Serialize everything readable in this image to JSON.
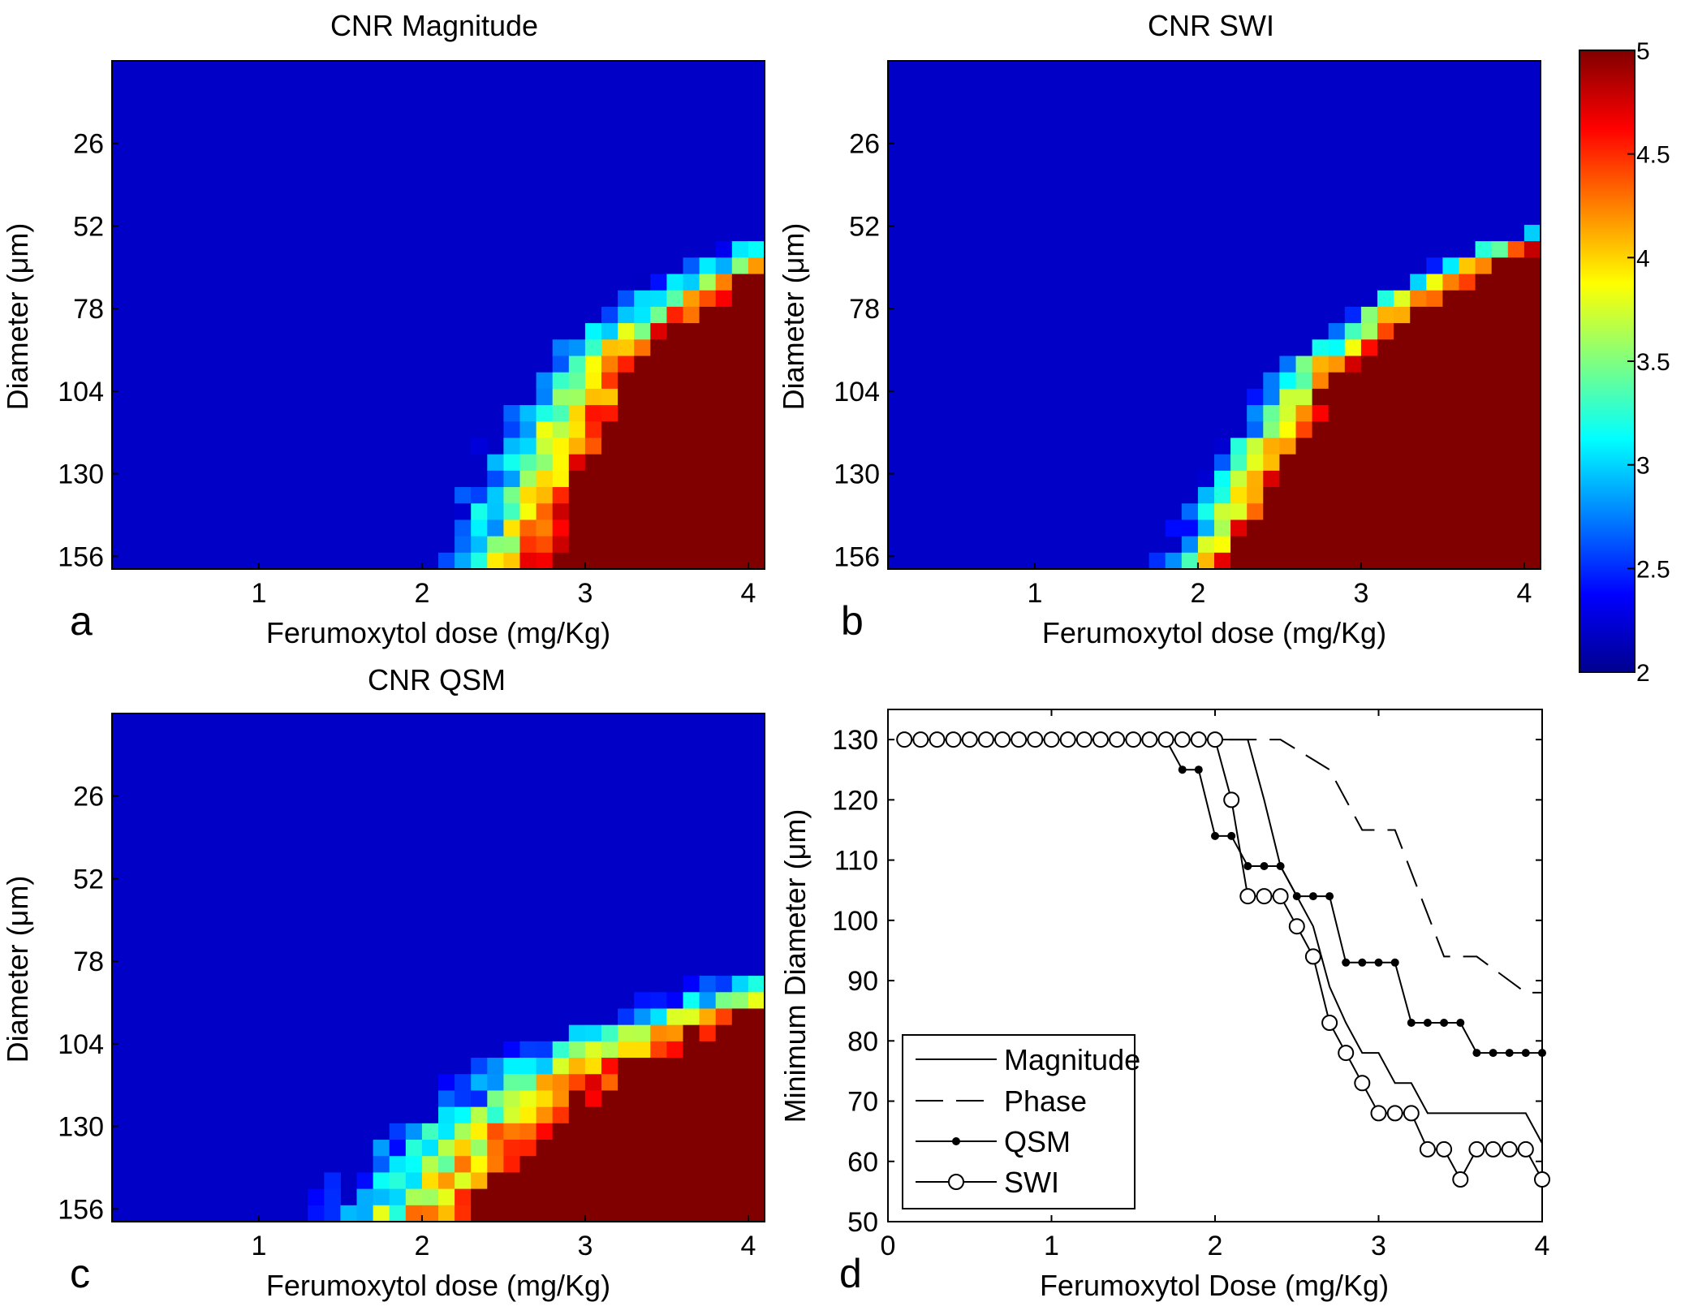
{
  "figure": {
    "panel_letters": [
      "a",
      "b",
      "c",
      "d"
    ]
  },
  "chart_data": [
    {
      "type": "heatmap",
      "panel": "a",
      "title": "CNR Magnitude",
      "xlabel": "Ferumoxytol dose (mg/Kg)",
      "ylabel": "Diameter (μm)",
      "xticks": [
        "1",
        "2",
        "3",
        "4"
      ],
      "yticks": [
        "26",
        "52",
        "78",
        "104",
        "130",
        "156"
      ],
      "xlim": [
        0.1,
        4.1
      ],
      "ylim_diameter": [
        0,
        160
      ],
      "onset_curve": {
        "points": [
          [
            2.1,
            160
          ],
          [
            2.4,
            122
          ],
          [
            2.8,
            90
          ],
          [
            3.3,
            72
          ],
          [
            4.0,
            56
          ]
        ],
        "transition_width": 0.62
      },
      "noise_seed": 11
    },
    {
      "type": "heatmap",
      "panel": "b",
      "title": "CNR SWI",
      "xlabel": "Ferumoxytol dose (mg/Kg)",
      "ylabel": "Diameter (μm)",
      "xticks": [
        "1",
        "2",
        "3",
        "4"
      ],
      "yticks": [
        "26",
        "52",
        "78",
        "104",
        "130",
        "156"
      ],
      "xlim": [
        0.1,
        4.1
      ],
      "ylim_diameter": [
        0,
        160
      ],
      "onset_curve": {
        "points": [
          [
            1.75,
            160
          ],
          [
            2.1,
            126
          ],
          [
            2.5,
            96
          ],
          [
            3.0,
            76
          ],
          [
            3.5,
            62
          ],
          [
            4.0,
            54
          ]
        ],
        "transition_width": 0.42
      },
      "noise_seed": 23
    },
    {
      "type": "heatmap",
      "panel": "c",
      "title": "CNR QSM",
      "xlabel": "Ferumoxytol dose (mg/Kg)",
      "ylabel": "Diameter (μm)",
      "xticks": [
        "1",
        "2",
        "3",
        "4"
      ],
      "yticks": [
        "26",
        "52",
        "78",
        "104",
        "130",
        "156"
      ],
      "xlim": [
        0.1,
        4.1
      ],
      "ylim_diameter": [
        0,
        160
      ],
      "onset_curve": {
        "points": [
          [
            1.3,
            160
          ],
          [
            1.8,
            132
          ],
          [
            2.3,
            113
          ],
          [
            2.8,
            100
          ],
          [
            3.4,
            90
          ],
          [
            4.0,
            80
          ]
        ],
        "transition_width": 0.95
      },
      "noise_seed": 37
    },
    {
      "type": "colorbar",
      "colormap": "jet",
      "range": [
        2,
        5
      ],
      "ticks": [
        "2",
        "2.5",
        "3",
        "3.5",
        "4",
        "4.5",
        "5"
      ],
      "tick_values": [
        2,
        2.5,
        3,
        3.5,
        4,
        4.5,
        5
      ]
    },
    {
      "type": "line",
      "panel": "d",
      "xlabel": "Ferumoxytol Dose (mg/Kg)",
      "ylabel": "Minimum Diameter (μm)",
      "xlim": [
        0,
        4
      ],
      "ylim": [
        50,
        135
      ],
      "xticks": [
        "0",
        "1",
        "2",
        "3",
        "4"
      ],
      "xtick_values": [
        0,
        1,
        2,
        3,
        4
      ],
      "yticks": [
        "50",
        "60",
        "70",
        "80",
        "90",
        "100",
        "110",
        "120",
        "130"
      ],
      "ytick_values": [
        50,
        60,
        70,
        80,
        90,
        100,
        110,
        120,
        130
      ],
      "legend": [
        "Magnitude",
        "Phase",
        "QSM",
        "SWI"
      ],
      "legend_position": "bottom-left",
      "series": [
        {
          "name": "Magnitude",
          "style": "solid",
          "x": [
            0.1,
            2.2,
            2.3,
            2.4,
            2.5,
            2.6,
            2.7,
            2.8,
            2.9,
            3.0,
            3.1,
            3.2,
            3.3,
            3.9,
            4.0
          ],
          "y": [
            130,
            130,
            120,
            109,
            104,
            99,
            89,
            83,
            78,
            78,
            73,
            73,
            68,
            68,
            63
          ]
        },
        {
          "name": "Phase",
          "style": "dashed",
          "x": [
            0.1,
            2.4,
            2.7,
            2.9,
            3.1,
            3.4,
            3.6,
            3.9,
            4.0
          ],
          "y": [
            130,
            130,
            125,
            115,
            115,
            94,
            94,
            88,
            88
          ]
        },
        {
          "name": "QSM",
          "style": "dots",
          "x": [
            0.1,
            0.2,
            0.3,
            0.4,
            0.5,
            0.6,
            0.7,
            0.8,
            0.9,
            1.0,
            1.1,
            1.2,
            1.3,
            1.4,
            1.5,
            1.6,
            1.7,
            1.8,
            1.9,
            2.0,
            2.1,
            2.2,
            2.3,
            2.4,
            2.5,
            2.6,
            2.7,
            2.8,
            2.9,
            3.0,
            3.1,
            3.2,
            3.3,
            3.4,
            3.5,
            3.6,
            3.7,
            3.8,
            3.9,
            4.0
          ],
          "y": [
            130,
            130,
            130,
            130,
            130,
            130,
            130,
            130,
            130,
            130,
            130,
            130,
            130,
            130,
            130,
            130,
            130,
            125,
            125,
            114,
            114,
            109,
            109,
            109,
            104,
            104,
            104,
            93,
            93,
            93,
            93,
            83,
            83,
            83,
            83,
            78,
            78,
            78,
            78,
            78
          ]
        },
        {
          "name": "SWI",
          "style": "circles",
          "x": [
            0.1,
            0.2,
            0.3,
            0.4,
            0.5,
            0.6,
            0.7,
            0.8,
            0.9,
            1.0,
            1.1,
            1.2,
            1.3,
            1.4,
            1.5,
            1.6,
            1.7,
            1.8,
            1.9,
            2.0,
            2.1,
            2.2,
            2.3,
            2.4,
            2.5,
            2.6,
            2.7,
            2.8,
            2.9,
            3.0,
            3.1,
            3.2,
            3.3,
            3.4,
            3.5,
            3.6,
            3.7,
            3.8,
            3.9,
            4.0
          ],
          "y": [
            130,
            130,
            130,
            130,
            130,
            130,
            130,
            130,
            130,
            130,
            130,
            130,
            130,
            130,
            130,
            130,
            130,
            130,
            130,
            130,
            120,
            104,
            104,
            104,
            99,
            94,
            83,
            78,
            73,
            68,
            68,
            68,
            62,
            62,
            57,
            62,
            62,
            62,
            62,
            57
          ]
        }
      ]
    }
  ]
}
